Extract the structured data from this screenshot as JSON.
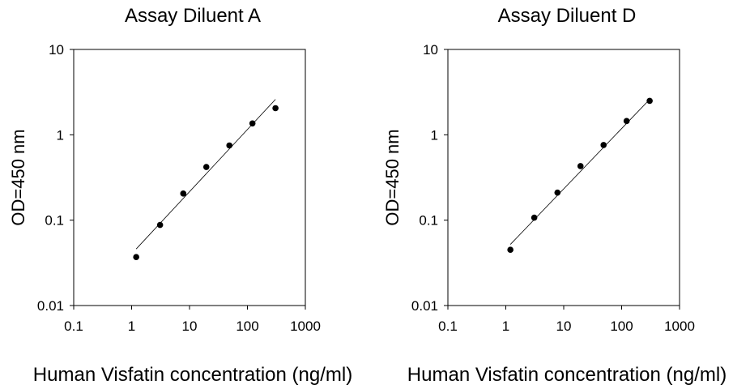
{
  "chart_data": [
    {
      "type": "scatter",
      "title": "Assay Diluent A",
      "xlabel": "Human Visfatin concentration (ng/ml)",
      "ylabel": "OD=450 nm",
      "xscale": "log",
      "yscale": "log",
      "xlim": [
        0.1,
        1000
      ],
      "ylim": [
        0.01,
        10
      ],
      "x_ticks": [
        "0.1",
        "1",
        "10",
        "100",
        "1000"
      ],
      "y_ticks": [
        "0.01",
        "0.1",
        "1",
        "10"
      ],
      "grid": false,
      "series": [
        {
          "x": [
            1.2,
            3.1,
            7.8,
            19.5,
            48.8,
            122,
            305
          ],
          "y": [
            0.037,
            0.088,
            0.205,
            0.42,
            0.75,
            1.36,
            2.05
          ]
        }
      ],
      "fit_line": {
        "x": [
          1.2,
          305
        ],
        "y": [
          0.046,
          2.6
        ]
      }
    },
    {
      "type": "scatter",
      "title": "Assay Diluent D",
      "xlabel": "Human Visfatin concentration (ng/ml)",
      "ylabel": "OD=450 nm",
      "xscale": "log",
      "yscale": "log",
      "xlim": [
        0.1,
        1000
      ],
      "ylim": [
        0.01,
        10
      ],
      "x_ticks": [
        "0.1",
        "1",
        "10",
        "100",
        "1000"
      ],
      "y_ticks": [
        "0.01",
        "0.1",
        "1",
        "10"
      ],
      "grid": false,
      "series": [
        {
          "x": [
            1.2,
            3.1,
            7.8,
            19.5,
            48.8,
            122,
            305
          ],
          "y": [
            0.045,
            0.107,
            0.21,
            0.43,
            0.76,
            1.45,
            2.5
          ]
        }
      ],
      "fit_line": {
        "x": [
          1.2,
          305
        ],
        "y": [
          0.052,
          2.6
        ]
      }
    }
  ]
}
